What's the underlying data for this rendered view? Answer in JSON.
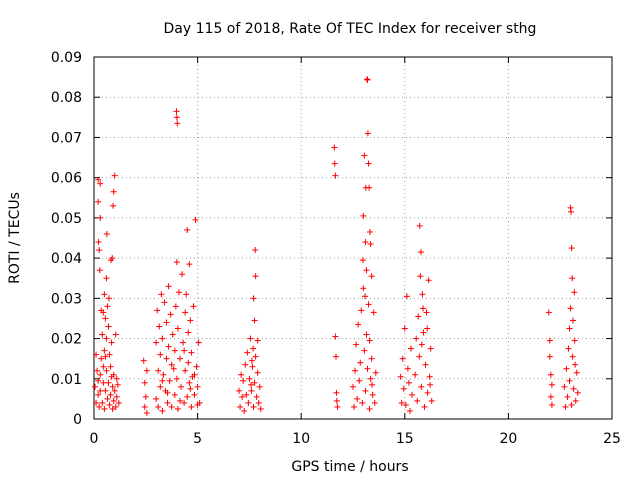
{
  "chart_data": {
    "type": "scatter",
    "title": "Day 115 of 2018, Rate Of TEC Index for receiver sthg",
    "xlabel": "GPS time / hours",
    "ylabel": "ROTI / TECUs",
    "xlim": [
      0,
      25
    ],
    "ylim": [
      0,
      0.09
    ],
    "grid": true,
    "marker": "+",
    "color": "#ff0000",
    "xticks": [
      0,
      5,
      10,
      15,
      20,
      25
    ],
    "xtick_labels": [
      "0",
      "5",
      "10",
      "15",
      "20",
      "25"
    ],
    "yticks": [
      0,
      0.01,
      0.02,
      0.03,
      0.04,
      0.05,
      0.06,
      0.07,
      0.08,
      0.09
    ],
    "ytick_labels": [
      "0",
      "0.01",
      "0.02",
      "0.03",
      "0.04",
      "0.05",
      "0.06",
      "0.07",
      "0.08",
      "0.09"
    ],
    "series": [
      {
        "name": "ROTI",
        "points": [
          [
            0.05,
            0.008
          ],
          [
            0.1,
            0.016
          ],
          [
            0.1,
            0.004
          ],
          [
            0.15,
            0.012
          ],
          [
            0.2,
            0.006
          ],
          [
            0.2,
            0.0095
          ],
          [
            0.25,
            0.003
          ],
          [
            0.3,
            0.011
          ],
          [
            0.3,
            0.007
          ],
          [
            0.35,
            0.015
          ],
          [
            0.2,
            0.0595
          ],
          [
            0.2,
            0.054
          ],
          [
            0.22,
            0.044
          ],
          [
            0.25,
            0.042
          ],
          [
            0.28,
            0.037
          ],
          [
            0.3,
            0.0585
          ],
          [
            0.3,
            0.05
          ],
          [
            0.35,
            0.027
          ],
          [
            0.4,
            0.021
          ],
          [
            0.4,
            0.004
          ],
          [
            0.45,
            0.013
          ],
          [
            0.45,
            0.009
          ],
          [
            0.5,
            0.017
          ],
          [
            0.5,
            0.0025
          ],
          [
            0.5,
            0.031
          ],
          [
            0.55,
            0.025
          ],
          [
            0.55,
            0.007
          ],
          [
            0.6,
            0.02
          ],
          [
            0.6,
            0.012
          ],
          [
            0.6,
            0.035
          ],
          [
            0.62,
            0.046
          ],
          [
            0.65,
            0.028
          ],
          [
            0.65,
            0.005
          ],
          [
            0.7,
            0.023
          ],
          [
            0.7,
            0.009
          ],
          [
            0.72,
            0.03
          ],
          [
            0.75,
            0.016
          ],
          [
            0.75,
            0.0035
          ],
          [
            0.8,
            0.013
          ],
          [
            0.8,
            0.006
          ],
          [
            0.82,
            0.0395
          ],
          [
            0.85,
            0.019
          ],
          [
            0.88,
            0.04
          ],
          [
            0.9,
            0.008
          ],
          [
            0.9,
            0.0025
          ],
          [
            0.92,
            0.053
          ],
          [
            0.95,
            0.011
          ],
          [
            0.95,
            0.0045
          ],
          [
            0.95,
            0.0565
          ],
          [
            1.0,
            0.0605
          ],
          [
            1.0,
            0.007
          ],
          [
            1.05,
            0.021
          ],
          [
            1.05,
            0.003
          ],
          [
            1.1,
            0.01
          ],
          [
            1.1,
            0.0055
          ],
          [
            1.15,
            0.0085
          ],
          [
            1.2,
            0.004
          ],
          [
            0.45,
            0.0265
          ],
          [
            0.55,
            0.0155
          ],
          [
            0.85,
            0.0105
          ],
          [
            2.4,
            0.0145
          ],
          [
            2.45,
            0.003
          ],
          [
            2.45,
            0.009
          ],
          [
            2.5,
            0.0055
          ],
          [
            2.55,
            0.012
          ],
          [
            2.55,
            0.0015
          ],
          [
            3.0,
            0.019
          ],
          [
            3.0,
            0.005
          ],
          [
            3.05,
            0.027
          ],
          [
            3.1,
            0.003
          ],
          [
            3.1,
            0.012
          ],
          [
            3.15,
            0.023
          ],
          [
            3.2,
            0.016
          ],
          [
            3.2,
            0.008
          ],
          [
            3.25,
            0.031
          ],
          [
            3.3,
            0.002
          ],
          [
            3.3,
            0.02
          ],
          [
            3.35,
            0.011
          ],
          [
            3.4,
            0.029
          ],
          [
            3.45,
            0.007
          ],
          [
            3.5,
            0.024
          ],
          [
            3.5,
            0.015
          ],
          [
            3.55,
            0.004
          ],
          [
            3.6,
            0.033
          ],
          [
            3.6,
            0.018
          ],
          [
            3.65,
            0.0095
          ],
          [
            3.7,
            0.026
          ],
          [
            3.75,
            0.003
          ],
          [
            3.8,
            0.021
          ],
          [
            3.85,
            0.0125
          ],
          [
            3.9,
            0.017
          ],
          [
            3.9,
            0.006
          ],
          [
            3.95,
            0.028
          ],
          [
            4.0,
            0.039
          ],
          [
            4.0,
            0.01
          ],
          [
            4.05,
            0.0225
          ],
          [
            3.98,
            0.0765
          ],
          [
            4.0,
            0.075
          ],
          [
            4.02,
            0.0735
          ],
          [
            4.05,
            0.0025
          ],
          [
            4.1,
            0.0315
          ],
          [
            4.15,
            0.015
          ],
          [
            4.2,
            0.008
          ],
          [
            4.25,
            0.036
          ],
          [
            4.3,
            0.019
          ],
          [
            4.35,
            0.004
          ],
          [
            4.4,
            0.0265
          ],
          [
            4.4,
            0.012
          ],
          [
            4.45,
            0.031
          ],
          [
            4.5,
            0.047
          ],
          [
            4.5,
            0.0055
          ],
          [
            4.55,
            0.0215
          ],
          [
            4.55,
            0.014
          ],
          [
            4.6,
            0.0385
          ],
          [
            4.6,
            0.009
          ],
          [
            4.65,
            0.0245
          ],
          [
            4.7,
            0.003
          ],
          [
            4.7,
            0.0165
          ],
          [
            4.75,
            0.0105
          ],
          [
            4.8,
            0.028
          ],
          [
            4.85,
            0.006
          ],
          [
            4.9,
            0.0495
          ],
          [
            4.95,
            0.013
          ],
          [
            5.0,
            0.008
          ],
          [
            5.05,
            0.019
          ],
          [
            5.1,
            0.004
          ],
          [
            3.3,
            0.0095
          ],
          [
            3.55,
            0.0065
          ],
          [
            3.75,
            0.0135
          ],
          [
            4.15,
            0.0045
          ],
          [
            4.35,
            0.017
          ],
          [
            4.65,
            0.0075
          ],
          [
            4.85,
            0.011
          ],
          [
            5.0,
            0.0035
          ],
          [
            7.0,
            0.007
          ],
          [
            7.05,
            0.003
          ],
          [
            7.1,
            0.011
          ],
          [
            7.15,
            0.0055
          ],
          [
            7.2,
            0.0095
          ],
          [
            7.25,
            0.002
          ],
          [
            7.3,
            0.0135
          ],
          [
            7.35,
            0.006
          ],
          [
            7.4,
            0.0165
          ],
          [
            7.45,
            0.004
          ],
          [
            7.5,
            0.01
          ],
          [
            7.55,
            0.02
          ],
          [
            7.6,
            0.007
          ],
          [
            7.65,
            0.013
          ],
          [
            7.7,
            0.003
          ],
          [
            7.7,
            0.03
          ],
          [
            7.75,
            0.0245
          ],
          [
            7.75,
            0.009
          ],
          [
            7.78,
            0.042
          ],
          [
            7.8,
            0.0355
          ],
          [
            7.8,
            0.0155
          ],
          [
            7.85,
            0.0055
          ],
          [
            7.9,
            0.0195
          ],
          [
            7.9,
            0.0115
          ],
          [
            7.95,
            0.004
          ],
          [
            8.0,
            0.008
          ],
          [
            8.05,
            0.0025
          ],
          [
            7.58,
            0.0085
          ],
          [
            7.62,
            0.0145
          ],
          [
            7.68,
            0.0175
          ],
          [
            11.6,
            0.0675
          ],
          [
            11.62,
            0.0635
          ],
          [
            11.65,
            0.0605
          ],
          [
            11.65,
            0.0205
          ],
          [
            11.68,
            0.0155
          ],
          [
            11.7,
            0.0065
          ],
          [
            11.72,
            0.0045
          ],
          [
            11.75,
            0.003
          ],
          [
            12.5,
            0.008
          ],
          [
            12.55,
            0.003
          ],
          [
            12.6,
            0.012
          ],
          [
            12.65,
            0.0185
          ],
          [
            12.7,
            0.005
          ],
          [
            12.75,
            0.0235
          ],
          [
            12.8,
            0.0095
          ],
          [
            12.85,
            0.014
          ],
          [
            12.9,
            0.027
          ],
          [
            12.95,
            0.004
          ],
          [
            13.0,
            0.0325
          ],
          [
            13.0,
            0.0505
          ],
          [
            13.05,
            0.017
          ],
          [
            13.05,
            0.0655
          ],
          [
            13.1,
            0.044
          ],
          [
            13.1,
            0.007
          ],
          [
            13.12,
            0.0575
          ],
          [
            13.15,
            0.021
          ],
          [
            13.15,
            0.037
          ],
          [
            13.18,
            0.0845
          ],
          [
            13.2,
            0.0843
          ],
          [
            13.2,
            0.0125
          ],
          [
            13.22,
            0.071
          ],
          [
            13.25,
            0.0285
          ],
          [
            13.25,
            0.0635
          ],
          [
            13.3,
            0.0025
          ],
          [
            13.3,
            0.0195
          ],
          [
            13.35,
            0.0435
          ],
          [
            13.35,
            0.01
          ],
          [
            13.4,
            0.0355
          ],
          [
            13.4,
            0.015
          ],
          [
            13.45,
            0.006
          ],
          [
            13.5,
            0.0265
          ],
          [
            13.55,
            0.004
          ],
          [
            13.6,
            0.0115
          ],
          [
            12.98,
            0.0395
          ],
          [
            13.08,
            0.0305
          ],
          [
            13.28,
            0.0575
          ],
          [
            13.32,
            0.0465
          ],
          [
            13.42,
            0.0085
          ],
          [
            14.8,
            0.0105
          ],
          [
            14.85,
            0.004
          ],
          [
            14.9,
            0.015
          ],
          [
            14.95,
            0.0075
          ],
          [
            15.0,
            0.0225
          ],
          [
            15.05,
            0.0035
          ],
          [
            15.1,
            0.0305
          ],
          [
            15.15,
            0.0125
          ],
          [
            15.2,
            0.009
          ],
          [
            15.25,
            0.002
          ],
          [
            15.3,
            0.0175
          ],
          [
            15.35,
            0.006
          ],
          [
            15.5,
            0.011
          ],
          [
            15.55,
            0.02
          ],
          [
            15.6,
            0.0045
          ],
          [
            15.65,
            0.0255
          ],
          [
            15.7,
            0.0155
          ],
          [
            15.72,
            0.048
          ],
          [
            15.75,
            0.0355
          ],
          [
            15.78,
            0.0415
          ],
          [
            15.8,
            0.008
          ],
          [
            15.85,
            0.031
          ],
          [
            15.9,
            0.0215
          ],
          [
            15.95,
            0.003
          ],
          [
            16.0,
            0.0135
          ],
          [
            16.05,
            0.0265
          ],
          [
            16.1,
            0.0065
          ],
          [
            16.15,
            0.0345
          ],
          [
            16.2,
            0.0105
          ],
          [
            16.25,
            0.0175
          ],
          [
            16.3,
            0.0045
          ],
          [
            15.82,
            0.0185
          ],
          [
            15.88,
            0.0275
          ],
          [
            16.08,
            0.0225
          ],
          [
            16.22,
            0.0085
          ],
          [
            21.95,
            0.0265
          ],
          [
            22.0,
            0.0195
          ],
          [
            22.0,
            0.0155
          ],
          [
            22.05,
            0.011
          ],
          [
            22.05,
            0.0055
          ],
          [
            22.1,
            0.0035
          ],
          [
            22.1,
            0.0085
          ],
          [
            22.7,
            0.008
          ],
          [
            22.75,
            0.003
          ],
          [
            22.8,
            0.0125
          ],
          [
            22.85,
            0.0055
          ],
          [
            22.9,
            0.0175
          ],
          [
            22.95,
            0.0225
          ],
          [
            22.95,
            0.0095
          ],
          [
            23.0,
            0.0525
          ],
          [
            23.0,
            0.0275
          ],
          [
            23.02,
            0.0515
          ],
          [
            23.05,
            0.0425
          ],
          [
            23.05,
            0.0035
          ],
          [
            23.08,
            0.035
          ],
          [
            23.1,
            0.0155
          ],
          [
            23.15,
            0.0075
          ],
          [
            23.2,
            0.0195
          ],
          [
            23.25,
            0.0045
          ],
          [
            23.3,
            0.0115
          ],
          [
            23.35,
            0.0065
          ],
          [
            23.12,
            0.0245
          ],
          [
            23.18,
            0.0315
          ],
          [
            23.22,
            0.0135
          ]
        ]
      }
    ]
  }
}
